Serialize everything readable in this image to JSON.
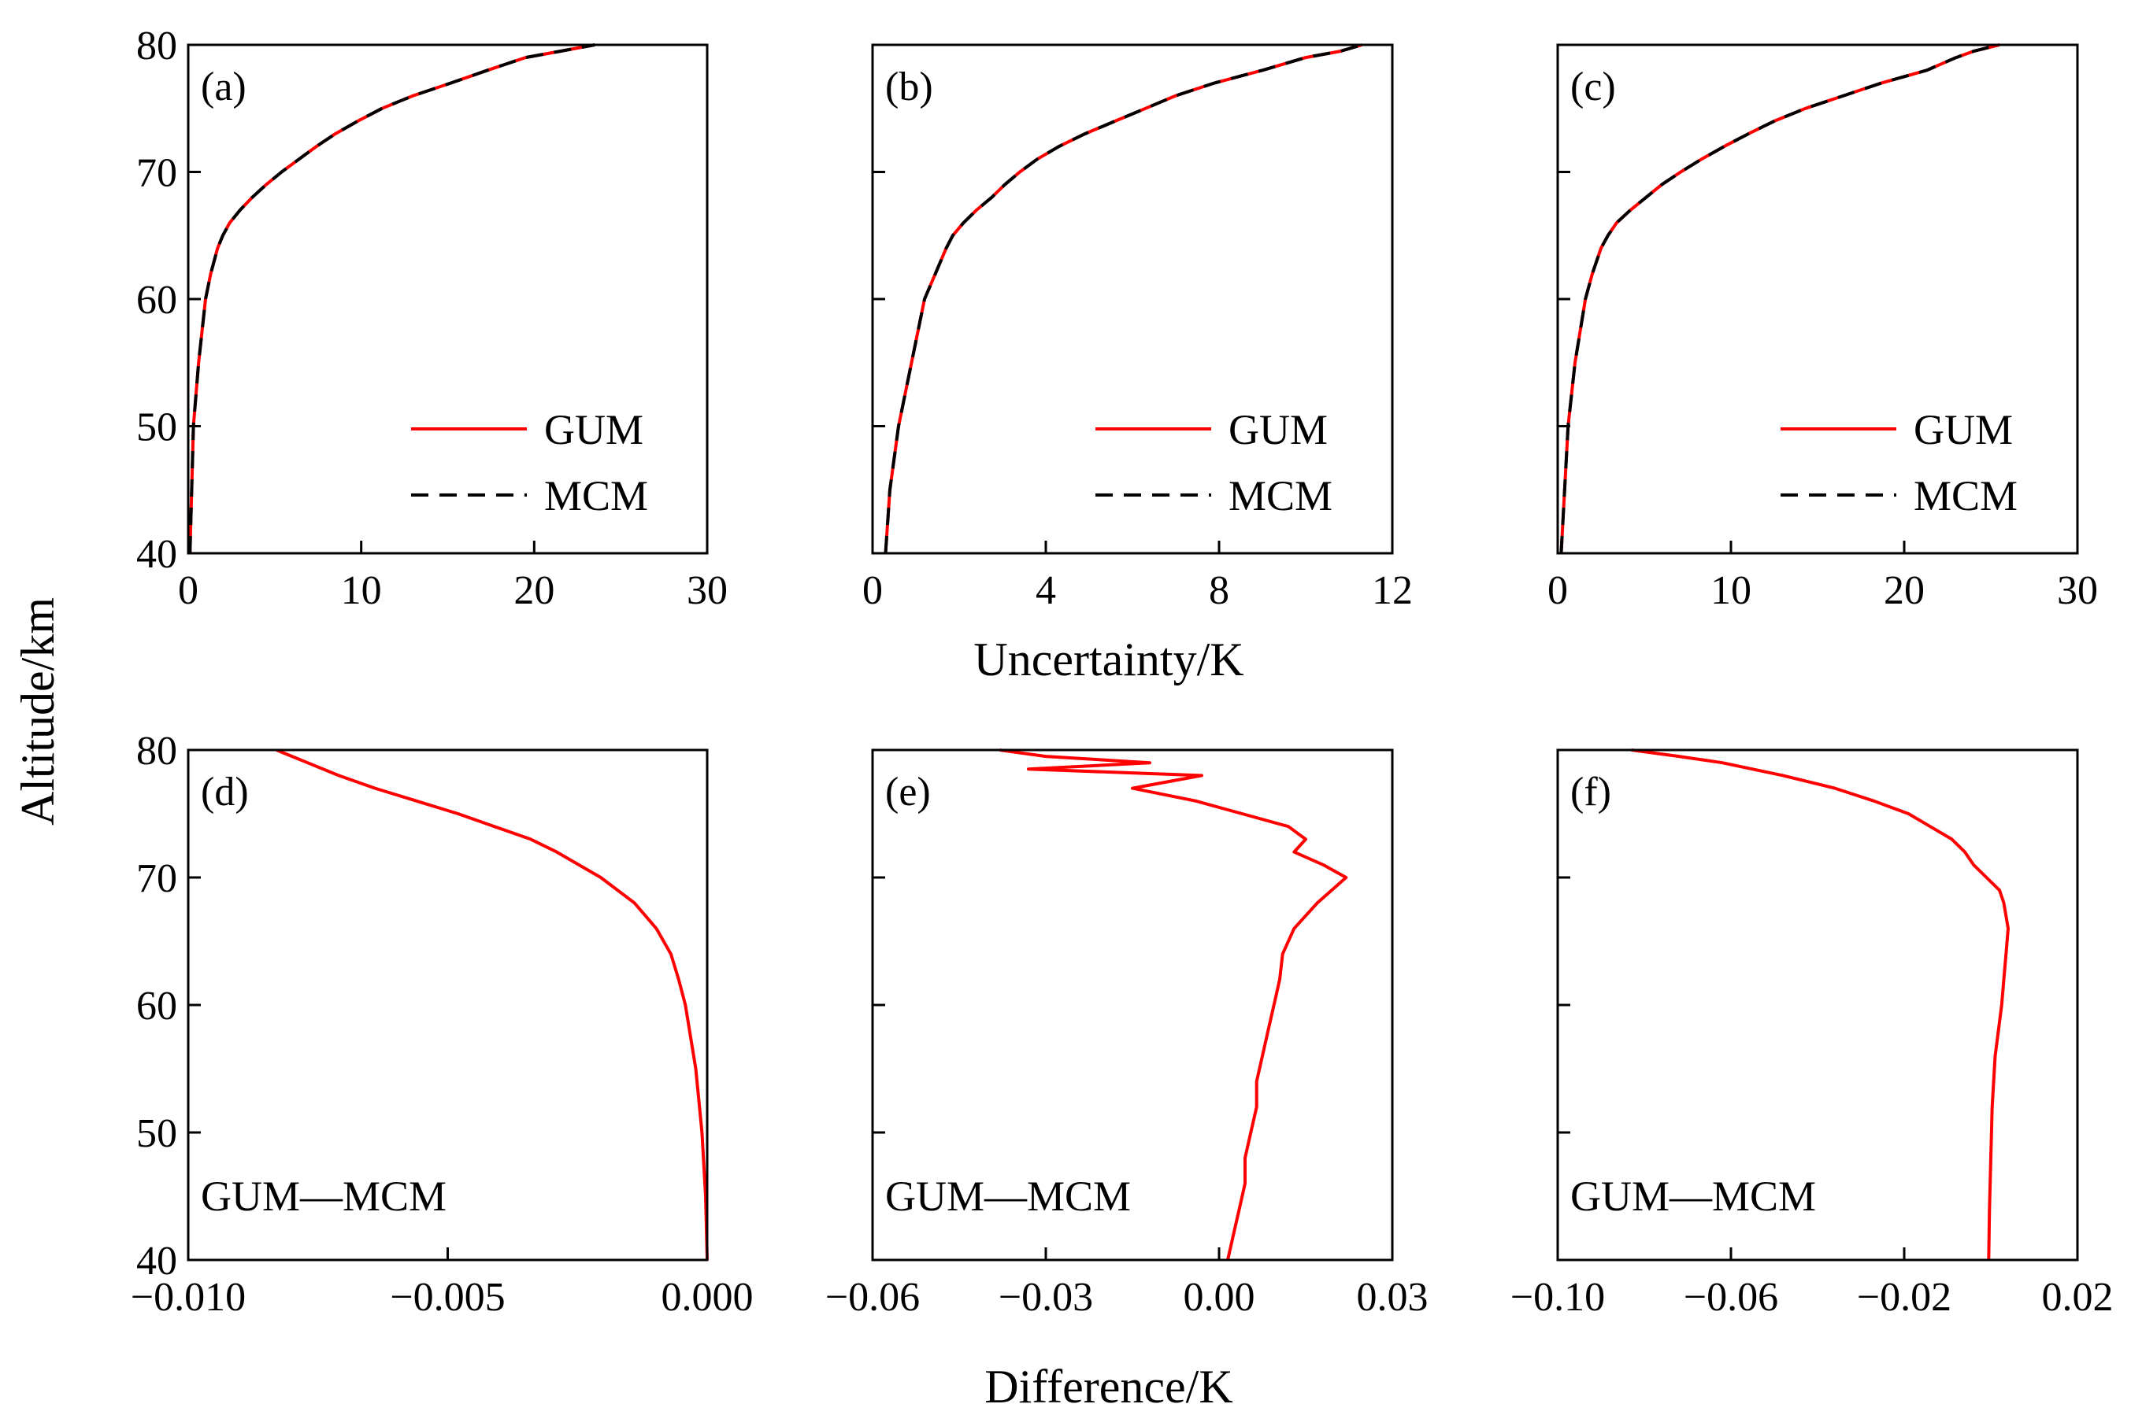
{
  "figure": {
    "ylabel": "Altitude/km",
    "xlabel_top": "Uncertainty/K",
    "xlabel_bottom": "Difference/K"
  },
  "chart_data": [
    {
      "panel": "(a)",
      "type": "line",
      "xlim": [
        0,
        30
      ],
      "ylim": [
        40,
        80
      ],
      "xticks": [
        0,
        10,
        20,
        30
      ],
      "xtick_labels": [
        "0",
        "10",
        "20",
        "30"
      ],
      "yticks": [
        40,
        50,
        60,
        70,
        80
      ],
      "ytick_labels": [
        "40",
        "50",
        "60",
        "70",
        "80"
      ],
      "legend": [
        "GUM",
        "MCM"
      ],
      "legend_position": "lower-right",
      "series": [
        {
          "name": "GUM",
          "color": "#ff0000",
          "dash": "solid",
          "y": [
            40,
            45,
            50,
            55,
            60,
            62,
            64,
            65,
            66,
            67,
            68,
            69,
            70,
            71,
            72,
            73,
            74,
            75,
            76,
            77,
            78,
            79,
            79.5,
            80
          ],
          "x": [
            0.1,
            0.2,
            0.3,
            0.6,
            1.0,
            1.3,
            1.7,
            2.0,
            2.4,
            3.0,
            3.7,
            4.5,
            5.4,
            6.4,
            7.4,
            8.5,
            9.8,
            11.2,
            13.0,
            15.2,
            17.3,
            19.5,
            21.5,
            23.5
          ]
        },
        {
          "name": "MCM",
          "color": "#000000",
          "dash": "dashed",
          "y": [
            40,
            45,
            50,
            55,
            60,
            62,
            64,
            65,
            66,
            67,
            68,
            69,
            70,
            71,
            72,
            73,
            74,
            75,
            76,
            77,
            78,
            79,
            79.5,
            80
          ],
          "x": [
            0.1,
            0.2,
            0.3,
            0.6,
            1.0,
            1.3,
            1.7,
            2.0,
            2.4,
            3.0,
            3.7,
            4.5,
            5.4,
            6.4,
            7.4,
            8.5,
            9.8,
            11.2,
            13.0,
            15.2,
            17.3,
            19.5,
            21.5,
            23.5
          ]
        }
      ]
    },
    {
      "panel": "(b)",
      "type": "line",
      "xlim": [
        0,
        12
      ],
      "ylim": [
        40,
        80
      ],
      "xticks": [
        0,
        4,
        8,
        12
      ],
      "xtick_labels": [
        "0",
        "4",
        "8",
        "12"
      ],
      "yticks": [
        40,
        50,
        60,
        70,
        80
      ],
      "ytick_labels": [],
      "legend": [
        "GUM",
        "MCM"
      ],
      "legend_position": "lower-right",
      "series": [
        {
          "name": "GUM",
          "color": "#ff0000",
          "dash": "solid",
          "y": [
            40,
            45,
            50,
            55,
            60,
            62,
            64,
            65,
            66,
            67,
            68,
            69,
            70,
            71,
            72,
            73,
            74,
            75,
            76,
            77,
            78,
            79,
            79.5,
            80
          ],
          "x": [
            0.3,
            0.4,
            0.6,
            0.9,
            1.2,
            1.45,
            1.7,
            1.85,
            2.1,
            2.4,
            2.75,
            3.05,
            3.4,
            3.8,
            4.3,
            4.9,
            5.6,
            6.3,
            7.0,
            7.9,
            9.0,
            10.0,
            10.8,
            11.3
          ]
        },
        {
          "name": "MCM",
          "color": "#000000",
          "dash": "dashed",
          "y": [
            40,
            45,
            50,
            55,
            60,
            62,
            64,
            65,
            66,
            67,
            68,
            69,
            70,
            71,
            72,
            73,
            74,
            75,
            76,
            77,
            78,
            79,
            79.5,
            80
          ],
          "x": [
            0.3,
            0.4,
            0.6,
            0.9,
            1.2,
            1.45,
            1.7,
            1.85,
            2.1,
            2.4,
            2.75,
            3.05,
            3.4,
            3.8,
            4.3,
            4.9,
            5.6,
            6.3,
            7.0,
            7.9,
            9.0,
            10.0,
            10.8,
            11.3
          ]
        }
      ]
    },
    {
      "panel": "(c)",
      "type": "line",
      "xlim": [
        0,
        30
      ],
      "ylim": [
        40,
        80
      ],
      "xticks": [
        0,
        10,
        20,
        30
      ],
      "xtick_labels": [
        "0",
        "10",
        "20",
        "30"
      ],
      "yticks": [
        40,
        50,
        60,
        70,
        80
      ],
      "ytick_labels": [],
      "legend": [
        "GUM",
        "MCM"
      ],
      "legend_position": "lower-right",
      "series": [
        {
          "name": "GUM",
          "color": "#ff0000",
          "dash": "solid",
          "y": [
            40,
            45,
            50,
            55,
            60,
            62,
            64,
            65,
            66,
            67,
            68,
            69,
            70,
            71,
            72,
            73,
            74,
            75,
            76,
            77,
            78,
            79,
            79.5,
            80
          ],
          "x": [
            0.2,
            0.4,
            0.6,
            1.0,
            1.6,
            2.0,
            2.5,
            2.9,
            3.4,
            4.2,
            5.1,
            6.0,
            7.1,
            8.3,
            9.6,
            11.0,
            12.5,
            14.3,
            16.5,
            18.7,
            21.3,
            23.0,
            24.0,
            25.5
          ]
        },
        {
          "name": "MCM",
          "color": "#000000",
          "dash": "dashed",
          "y": [
            40,
            45,
            50,
            55,
            60,
            62,
            64,
            65,
            66,
            67,
            68,
            69,
            70,
            71,
            72,
            73,
            74,
            75,
            76,
            77,
            78,
            79,
            79.5,
            80
          ],
          "x": [
            0.2,
            0.4,
            0.6,
            1.0,
            1.6,
            2.0,
            2.5,
            2.9,
            3.4,
            4.2,
            5.1,
            6.0,
            7.1,
            8.3,
            9.6,
            11.0,
            12.5,
            14.3,
            16.5,
            18.7,
            21.3,
            23.0,
            24.0,
            25.5
          ]
        }
      ]
    },
    {
      "panel": "(d)",
      "type": "line",
      "xlim": [
        -0.01,
        0.0
      ],
      "ylim": [
        40,
        80
      ],
      "xticks": [
        -0.01,
        -0.005,
        0.0
      ],
      "xtick_labels": [
        "−0.010",
        "−0.005",
        "0.000"
      ],
      "yticks": [
        40,
        50,
        60,
        70,
        80
      ],
      "ytick_labels": [
        "40",
        "50",
        "60",
        "70",
        "80"
      ],
      "annotation": "GUM—MCM",
      "series": [
        {
          "name": "GUM—MCM",
          "color": "#ff0000",
          "dash": "solid",
          "y": [
            40,
            45,
            50,
            55,
            60,
            62,
            64,
            66,
            68,
            70,
            72,
            73,
            74,
            75,
            76,
            77,
            78,
            79,
            80
          ],
          "x": [
            0.0,
            -3e-05,
            -0.0001,
            -0.00022,
            -0.00042,
            -0.00055,
            -0.0007,
            -0.00098,
            -0.0014,
            -0.00205,
            -0.0029,
            -0.0034,
            -0.0041,
            -0.0048,
            -0.0056,
            -0.0064,
            -0.0071,
            -0.0077,
            -0.0083
          ]
        }
      ]
    },
    {
      "panel": "(e)",
      "type": "line",
      "xlim": [
        -0.06,
        0.03
      ],
      "ylim": [
        40,
        80
      ],
      "xticks": [
        -0.06,
        -0.03,
        0.0,
        0.03
      ],
      "xtick_labels": [
        "−0.06",
        "−0.03",
        "0.00",
        "0.03"
      ],
      "yticks": [
        40,
        50,
        60,
        70,
        80
      ],
      "ytick_labels": [],
      "annotation": "GUM—MCM",
      "series": [
        {
          "name": "GUM—MCM",
          "color": "#ff0000",
          "dash": "solid",
          "y": [
            40,
            42,
            44,
            46,
            48,
            50,
            52,
            54,
            56,
            58,
            60,
            62,
            64,
            66,
            68,
            70,
            71,
            72,
            73,
            74,
            75,
            76,
            77,
            78,
            78.5,
            79,
            79.5,
            80
          ],
          "x": [
            0.0015,
            0.0025,
            0.0035,
            0.0045,
            0.0045,
            0.0055,
            0.0065,
            0.0065,
            0.0075,
            0.0085,
            0.0095,
            0.0105,
            0.011,
            0.013,
            0.017,
            0.022,
            0.018,
            0.013,
            0.015,
            0.012,
            0.004,
            -0.004,
            -0.015,
            -0.003,
            -0.033,
            -0.012,
            -0.03,
            -0.038
          ]
        }
      ]
    },
    {
      "panel": "(f)",
      "type": "line",
      "xlim": [
        -0.1,
        0.02
      ],
      "ylim": [
        40,
        80
      ],
      "xticks": [
        -0.1,
        -0.06,
        -0.02,
        0.02
      ],
      "xtick_labels": [
        "−0.10",
        "−0.06",
        "−0.02",
        "0.02"
      ],
      "yticks": [
        40,
        50,
        60,
        70,
        80
      ],
      "ytick_labels": [],
      "annotation": "GUM—MCM",
      "series": [
        {
          "name": "GUM—MCM",
          "color": "#ff0000",
          "dash": "solid",
          "y": [
            40,
            44,
            48,
            52,
            56,
            60,
            62,
            64,
            66,
            68,
            69,
            70,
            71,
            72,
            73,
            74,
            75,
            76,
            77,
            78,
            79,
            79.5,
            80
          ],
          "x": [
            -0.0005,
            -0.0003,
            0.0,
            0.0003,
            0.001,
            0.0025,
            0.003,
            0.0035,
            0.004,
            0.003,
            0.002,
            -0.001,
            -0.004,
            -0.006,
            -0.009,
            -0.014,
            -0.019,
            -0.027,
            -0.036,
            -0.048,
            -0.062,
            -0.072,
            -0.083
          ]
        }
      ]
    }
  ]
}
